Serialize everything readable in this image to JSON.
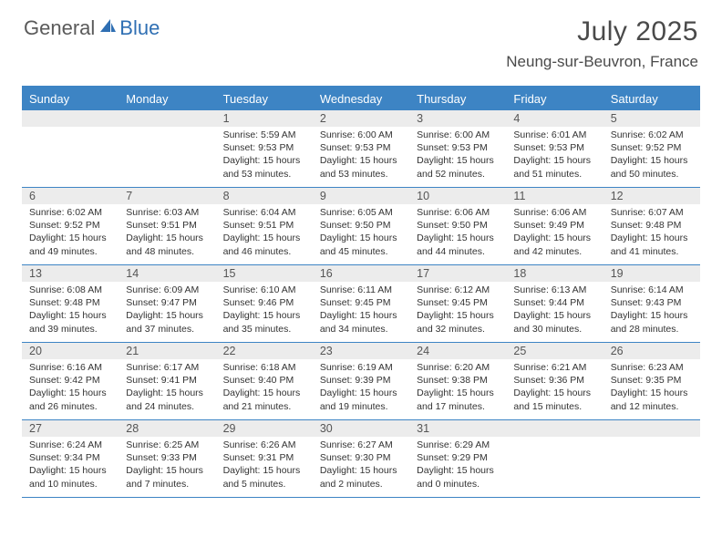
{
  "brand": {
    "part1": "General",
    "part2": "Blue"
  },
  "title": "July 2025",
  "location": "Neung-sur-Beuvron, France",
  "colors": {
    "header_blue": "#3d84c4",
    "row_gray": "#ececec",
    "text_dark": "#333333",
    "title_gray": "#4a4a4a",
    "logo_gray": "#5a5a5a",
    "logo_blue": "#2f6fb3",
    "background": "#ffffff"
  },
  "typography": {
    "title_fontsize": 30,
    "location_fontsize": 17,
    "dayheader_fontsize": 13,
    "daynum_fontsize": 12.5,
    "body_fontsize": 10.5
  },
  "day_names": [
    "Sunday",
    "Monday",
    "Tuesday",
    "Wednesday",
    "Thursday",
    "Friday",
    "Saturday"
  ],
  "weeks": [
    [
      {
        "n": "",
        "sr": "",
        "ss": "",
        "dl": ""
      },
      {
        "n": "",
        "sr": "",
        "ss": "",
        "dl": ""
      },
      {
        "n": "1",
        "sr": "5:59 AM",
        "ss": "9:53 PM",
        "dl": "15 hours and 53 minutes."
      },
      {
        "n": "2",
        "sr": "6:00 AM",
        "ss": "9:53 PM",
        "dl": "15 hours and 53 minutes."
      },
      {
        "n": "3",
        "sr": "6:00 AM",
        "ss": "9:53 PM",
        "dl": "15 hours and 52 minutes."
      },
      {
        "n": "4",
        "sr": "6:01 AM",
        "ss": "9:53 PM",
        "dl": "15 hours and 51 minutes."
      },
      {
        "n": "5",
        "sr": "6:02 AM",
        "ss": "9:52 PM",
        "dl": "15 hours and 50 minutes."
      }
    ],
    [
      {
        "n": "6",
        "sr": "6:02 AM",
        "ss": "9:52 PM",
        "dl": "15 hours and 49 minutes."
      },
      {
        "n": "7",
        "sr": "6:03 AM",
        "ss": "9:51 PM",
        "dl": "15 hours and 48 minutes."
      },
      {
        "n": "8",
        "sr": "6:04 AM",
        "ss": "9:51 PM",
        "dl": "15 hours and 46 minutes."
      },
      {
        "n": "9",
        "sr": "6:05 AM",
        "ss": "9:50 PM",
        "dl": "15 hours and 45 minutes."
      },
      {
        "n": "10",
        "sr": "6:06 AM",
        "ss": "9:50 PM",
        "dl": "15 hours and 44 minutes."
      },
      {
        "n": "11",
        "sr": "6:06 AM",
        "ss": "9:49 PM",
        "dl": "15 hours and 42 minutes."
      },
      {
        "n": "12",
        "sr": "6:07 AM",
        "ss": "9:48 PM",
        "dl": "15 hours and 41 minutes."
      }
    ],
    [
      {
        "n": "13",
        "sr": "6:08 AM",
        "ss": "9:48 PM",
        "dl": "15 hours and 39 minutes."
      },
      {
        "n": "14",
        "sr": "6:09 AM",
        "ss": "9:47 PM",
        "dl": "15 hours and 37 minutes."
      },
      {
        "n": "15",
        "sr": "6:10 AM",
        "ss": "9:46 PM",
        "dl": "15 hours and 35 minutes."
      },
      {
        "n": "16",
        "sr": "6:11 AM",
        "ss": "9:45 PM",
        "dl": "15 hours and 34 minutes."
      },
      {
        "n": "17",
        "sr": "6:12 AM",
        "ss": "9:45 PM",
        "dl": "15 hours and 32 minutes."
      },
      {
        "n": "18",
        "sr": "6:13 AM",
        "ss": "9:44 PM",
        "dl": "15 hours and 30 minutes."
      },
      {
        "n": "19",
        "sr": "6:14 AM",
        "ss": "9:43 PM",
        "dl": "15 hours and 28 minutes."
      }
    ],
    [
      {
        "n": "20",
        "sr": "6:16 AM",
        "ss": "9:42 PM",
        "dl": "15 hours and 26 minutes."
      },
      {
        "n": "21",
        "sr": "6:17 AM",
        "ss": "9:41 PM",
        "dl": "15 hours and 24 minutes."
      },
      {
        "n": "22",
        "sr": "6:18 AM",
        "ss": "9:40 PM",
        "dl": "15 hours and 21 minutes."
      },
      {
        "n": "23",
        "sr": "6:19 AM",
        "ss": "9:39 PM",
        "dl": "15 hours and 19 minutes."
      },
      {
        "n": "24",
        "sr": "6:20 AM",
        "ss": "9:38 PM",
        "dl": "15 hours and 17 minutes."
      },
      {
        "n": "25",
        "sr": "6:21 AM",
        "ss": "9:36 PM",
        "dl": "15 hours and 15 minutes."
      },
      {
        "n": "26",
        "sr": "6:23 AM",
        "ss": "9:35 PM",
        "dl": "15 hours and 12 minutes."
      }
    ],
    [
      {
        "n": "27",
        "sr": "6:24 AM",
        "ss": "9:34 PM",
        "dl": "15 hours and 10 minutes."
      },
      {
        "n": "28",
        "sr": "6:25 AM",
        "ss": "9:33 PM",
        "dl": "15 hours and 7 minutes."
      },
      {
        "n": "29",
        "sr": "6:26 AM",
        "ss": "9:31 PM",
        "dl": "15 hours and 5 minutes."
      },
      {
        "n": "30",
        "sr": "6:27 AM",
        "ss": "9:30 PM",
        "dl": "15 hours and 2 minutes."
      },
      {
        "n": "31",
        "sr": "6:29 AM",
        "ss": "9:29 PM",
        "dl": "15 hours and 0 minutes."
      },
      {
        "n": "",
        "sr": "",
        "ss": "",
        "dl": ""
      },
      {
        "n": "",
        "sr": "",
        "ss": "",
        "dl": ""
      }
    ]
  ],
  "labels": {
    "sunrise": "Sunrise:",
    "sunset": "Sunset:",
    "daylight": "Daylight:"
  }
}
